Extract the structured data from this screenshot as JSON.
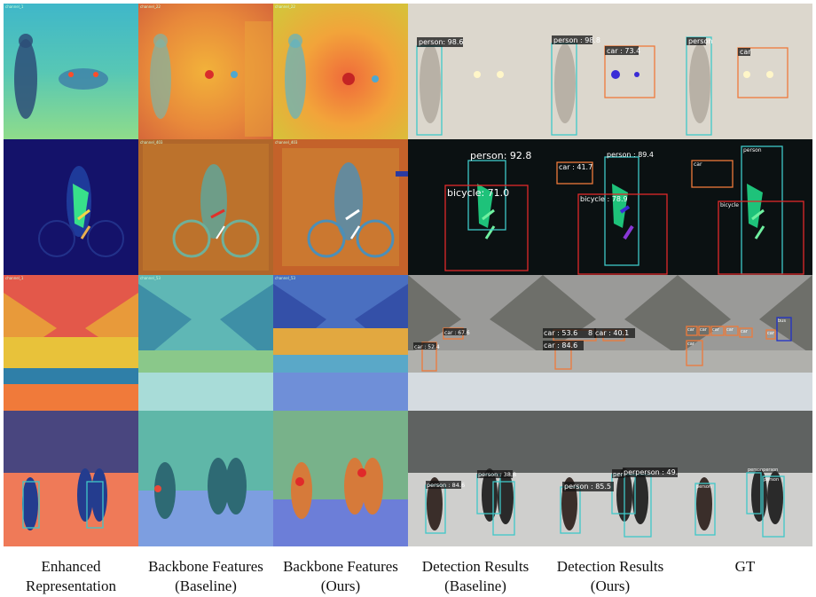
{
  "columns": [
    {
      "line1": "Enhanced",
      "line2": "Representation"
    },
    {
      "line1": "Backbone Features",
      "line2": "(Baseline)"
    },
    {
      "line1": "Backbone Features",
      "line2": "(Ours)"
    },
    {
      "line1": "Detection Results",
      "line2": "(Baseline)"
    },
    {
      "line1": "Detection Results",
      "line2": "(Ours)"
    },
    {
      "line1": "GT",
      "line2": ""
    }
  ],
  "corner_tags": {
    "fog_enh": "channel_1",
    "fog_base": "channel_22",
    "fog_ours": "channel_22",
    "night_base": "channel_403",
    "night_ours": "channel_403",
    "rain_enh": "channel_1",
    "rain_base": "channel_53",
    "rain_ours": "channel_53"
  },
  "detections": {
    "fog_baseline": [
      "person: 98.6"
    ],
    "fog_ours": [
      "person : 98.8",
      "car : 73.4"
    ],
    "fog_gt": [
      "person",
      "car"
    ],
    "night_baseline": [
      "person: 92.8",
      "bicycle: 71.0"
    ],
    "night_ours": [
      "car : 41.7",
      "person : 89.4",
      "bicycle : 78.9"
    ],
    "night_gt": [
      "car",
      "person",
      "bicycle"
    ],
    "rain_baseline": [
      "car : 67.6",
      "car : 52.4"
    ],
    "rain_ours": [
      "car : 53.6",
      "8",
      "car : 40.1",
      "car : 84.6"
    ],
    "rain_gt": [
      "car",
      "car",
      "car",
      "car",
      "car",
      "car",
      "bus",
      "car"
    ],
    "snow_baseline": [
      "person : 84.6",
      "person : 38.8"
    ],
    "snow_ours": [
      "person : 85.5",
      "pers",
      "perperson : 49.8"
    ],
    "snow_gt": [
      "person",
      "personperson",
      "person"
    ]
  },
  "colors": {
    "person": "#3fc8c8",
    "car": "#ef7a3a",
    "bicycle": "#e02a2a",
    "bus": "#2030c8"
  }
}
